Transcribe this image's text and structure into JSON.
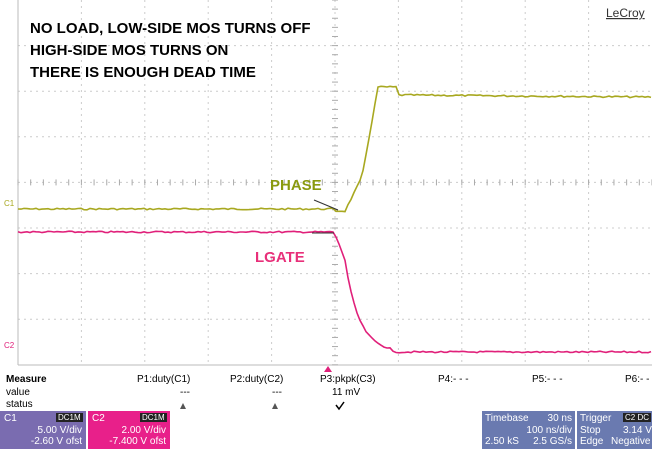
{
  "annotation": [
    "NO LOAD, LOW-SIDE MOS TURNS OFF",
    "HIGH-SIDE MOS TURNS ON",
    "THERE IS ENOUGH DEAD TIME"
  ],
  "brand": "LeCroy",
  "trace_labels": {
    "phase": "PHASE",
    "lgate": "LGATE"
  },
  "channel_markers": [
    "C1",
    "C2"
  ],
  "measure": {
    "headers": [
      "Measure",
      "P1:duty(C1)",
      "P2:duty(C2)",
      "P3:pkpk(C3)",
      "P4:- - -",
      "P5:- - -",
      "P6:- - -"
    ],
    "value_row": {
      "label": "value",
      "cells": [
        "---",
        "---",
        "11 mV"
      ]
    },
    "status_row": {
      "label": "status"
    }
  },
  "channels": [
    {
      "name": "C1",
      "coupling": "DC1M",
      "scale": "5.00 V/div",
      "offset": "-2.60 V ofst"
    },
    {
      "name": "C2",
      "coupling": "DC1M",
      "scale": "2.00 V/div",
      "offset": "-7.400 V ofst"
    }
  ],
  "timebase": {
    "title": "Timebase",
    "delay": "30 ns",
    "scale": "100 ns/div",
    "samples": "2.50 kS",
    "rate": "2.5 GS/s"
  },
  "trigger": {
    "title": "Trigger",
    "source": "C2 DC",
    "level": "3.14 V",
    "mode": "Stop",
    "type": "Edge",
    "slope": "Negative"
  }
}
